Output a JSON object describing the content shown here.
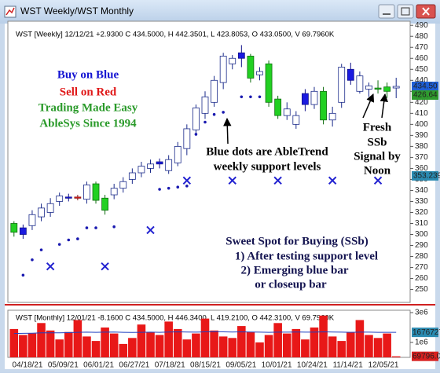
{
  "window": {
    "title": "WST Weekly/WST Monthly"
  },
  "chart_data": [
    {
      "type": "candlestick",
      "title": "WST [Weekly] 12/12/21 +2.9300 C 434.5000, H 442.3501, L 423.8053, O 433.0500, V 69.7960K",
      "open": [
        302,
        300,
        308,
        316,
        320,
        330,
        333,
        333,
        332,
        346,
        333,
        336,
        342,
        350,
        356,
        360,
        364,
        358,
        365,
        378,
        395,
        410,
        420,
        438,
        455,
        460,
        462,
        445,
        455,
        423,
        408,
        400,
        418,
        418,
        430,
        404,
        420,
        440,
        430,
        432,
        433,
        430,
        433.05
      ],
      "high": [
        312,
        309,
        322,
        328,
        333,
        338,
        337,
        336,
        348,
        348,
        336,
        346,
        352,
        360,
        366,
        368,
        369,
        372,
        384,
        400,
        418,
        430,
        444,
        465,
        463,
        472,
        464,
        452,
        458,
        426,
        420,
        412,
        432,
        434,
        434,
        416,
        455,
        456,
        448,
        438,
        440,
        438,
        442.35
      ],
      "low": [
        298,
        296,
        304,
        312,
        316,
        326,
        330,
        331,
        328,
        328,
        318,
        332,
        338,
        346,
        352,
        356,
        360,
        355,
        362,
        372,
        390,
        405,
        416,
        432,
        450,
        452,
        438,
        440,
        416,
        405,
        404,
        396,
        412,
        414,
        400,
        398,
        415,
        436,
        428,
        425,
        428,
        424,
        423.81
      ],
      "close": [
        310,
        306,
        318,
        324,
        328,
        335,
        334,
        334,
        345,
        331,
        322,
        342,
        348,
        356,
        362,
        364,
        366,
        368,
        380,
        396,
        415,
        425,
        440,
        462,
        460,
        465,
        442,
        448,
        420,
        408,
        414,
        408,
        428,
        430,
        404,
        410,
        452,
        450,
        444,
        435,
        432,
        434,
        434.5
      ],
      "candle_colors": [
        "green",
        "blue",
        "hollow",
        "hollow",
        "hollow",
        "hollow",
        "blue",
        "red",
        "hollow",
        "green",
        "green",
        "hollow",
        "hollow",
        "hollow",
        "hollow",
        "hollow",
        "blue",
        "hollow",
        "hollow",
        "hollow",
        "hollow",
        "hollow",
        "hollow",
        "hollow",
        "hollow",
        "blue",
        "green",
        "hollow",
        "green",
        "green",
        "hollow",
        "hollow",
        "blue",
        "hollow",
        "green",
        "hollow",
        "hollow",
        "blue",
        "hollow",
        "hollow",
        "green",
        "green",
        "hollow"
      ],
      "support_dots": [
        null,
        263,
        277,
        286,
        null,
        291,
        295,
        296,
        306,
        306,
        null,
        307,
        null,
        null,
        null,
        null,
        341,
        342,
        343,
        344,
        391,
        402,
        409,
        411,
        null,
        425,
        425,
        425,
        null,
        null,
        null,
        null,
        null,
        null,
        null,
        null,
        null,
        null,
        null,
        null,
        null,
        null,
        null
      ],
      "signal_marks": [
        null,
        null,
        null,
        null,
        271,
        null,
        null,
        null,
        null,
        null,
        271,
        null,
        null,
        null,
        null,
        304,
        null,
        null,
        null,
        349,
        null,
        null,
        null,
        null,
        349,
        null,
        null,
        null,
        null,
        349,
        null,
        null,
        null,
        null,
        null,
        349,
        null,
        null,
        null,
        null,
        349,
        null,
        null
      ],
      "ylim": [
        239,
        493
      ],
      "yticks": [
        250,
        260,
        270,
        280,
        290,
        300,
        310,
        320,
        330,
        340,
        350,
        360,
        370,
        380,
        390,
        400,
        410,
        420,
        430,
        440,
        450,
        460,
        470,
        480,
        490
      ],
      "price_markers": [
        {
          "value": 434.5,
          "label": "434.50",
          "color": "#1f5fd6"
        },
        {
          "value": 426.64,
          "label": "426.64",
          "color": "#2e9a2e"
        },
        {
          "value": 353.239,
          "label": "353.239",
          "color": "#2a8ab0"
        }
      ],
      "annotations": [
        {
          "text": "Buy on Blue",
          "color": "#1414d2"
        },
        {
          "text": "Sell on Red",
          "color": "#e01818"
        },
        {
          "text": "Trading Made Easy",
          "color": "#2a9a2a"
        },
        {
          "text": "AbleSys Since 1994",
          "color": "#2a9a2a"
        },
        {
          "text": "Blue dots are AbleTrend",
          "color": "#000000"
        },
        {
          "text": "weekly support levels",
          "color": "#000000"
        },
        {
          "text": "Fresh",
          "color": "#000000"
        },
        {
          "text": "SSb",
          "color": "#000000"
        },
        {
          "text": "Signal by",
          "color": "#000000"
        },
        {
          "text": "Noon",
          "color": "#000000"
        },
        {
          "text": "Sweet Spot for Buying (SSb)",
          "color": "#141450"
        },
        {
          "text": "1) After testing support level",
          "color": "#141450"
        },
        {
          "text": "2) Emerging blue bar",
          "color": "#141450"
        },
        {
          "text": "or closeup bar",
          "color": "#141450"
        }
      ]
    },
    {
      "type": "bar",
      "title": "WST [Monthly] 12/01/21 -8.1600 C 434.5000, H 446.3400, L 419.2100, O 442.3100, V 69.7960K",
      "values": [
        1900000,
        1500000,
        1600000,
        2300000,
        1800000,
        1200000,
        1700000,
        2500000,
        1400000,
        1100000,
        2000000,
        1600000,
        900000,
        1300000,
        2200000,
        1700000,
        1500000,
        2400000,
        1900000,
        1200000,
        1600000,
        2600000,
        1800000,
        1400000,
        1300000,
        2100000,
        1700000,
        1000000,
        1500000,
        2300000,
        1600000,
        1900000,
        1200000,
        2000000,
        2800000,
        1400000,
        1100000,
        1700000,
        2500000,
        1500000,
        1300000,
        1600000,
        69796
      ],
      "average": [
        1600000,
        1610000,
        1620000,
        1640000,
        1650000,
        1650000,
        1660000,
        1680000,
        1690000,
        1680000,
        1690000,
        1700000,
        1680000,
        1670000,
        1680000,
        1690000,
        1680000,
        1700000,
        1710000,
        1700000,
        1690000,
        1710000,
        1720000,
        1710000,
        1700000,
        1710000,
        1700000,
        1690000,
        1680000,
        1690000,
        1690000,
        1700000,
        1690000,
        1690000,
        1710000,
        1700000,
        1690000,
        1680000,
        1690000,
        1690000,
        1680000,
        1680000,
        1676727
      ],
      "color": "#e81818",
      "ylim": [
        0,
        3158000
      ],
      "yticks": [
        {
          "value": 3000000,
          "label": "3e6"
        },
        {
          "value": 1000000,
          "label": "1e6"
        }
      ],
      "price_markers": [
        {
          "value": 1676727,
          "label": "1676727",
          "color": "#2a8ab0"
        },
        {
          "value": 69796,
          "label": "69796.00",
          "color": "#d82020"
        }
      ],
      "x_labels": [
        "04/18/21",
        "05/09/21",
        "06/01/21",
        "06/27/21",
        "07/18/21",
        "08/15/21",
        "09/05/21",
        "10/01/21",
        "10/24/21",
        "11/14/21",
        "12/05/21"
      ]
    }
  ]
}
